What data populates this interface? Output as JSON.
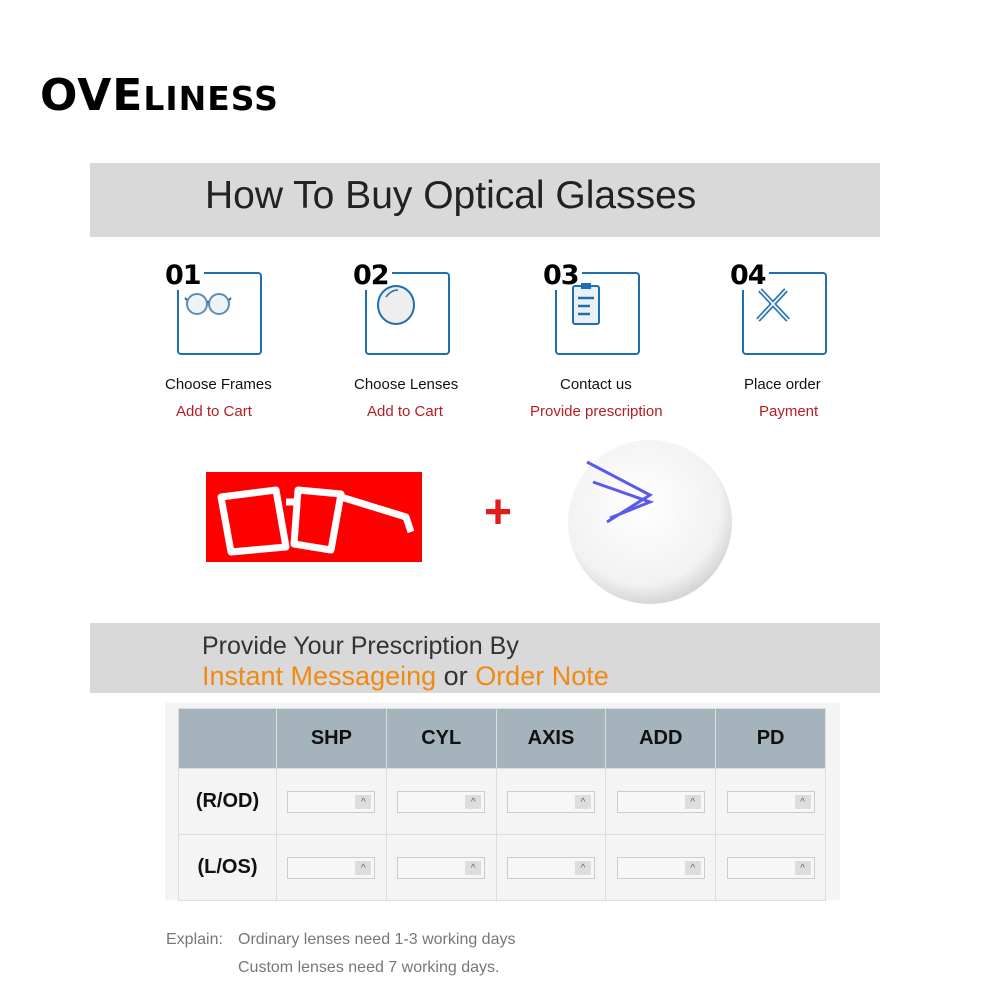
{
  "logo": {
    "big": "OVE",
    "small": "LINESS"
  },
  "title": "How To Buy Optical Glasses",
  "steps": [
    {
      "num": "01",
      "label": "Choose Frames",
      "action": "Add to Cart",
      "icon": "glasses-icon"
    },
    {
      "num": "02",
      "label": "Choose Lenses",
      "action": "Add to Cart",
      "icon": "lens-icon"
    },
    {
      "num": "03",
      "label": "Contact us",
      "action": "Provide prescription",
      "icon": "clipboard-icon"
    },
    {
      "num": "04",
      "label": "Place order",
      "action": "Payment",
      "icon": "tools-icon"
    }
  ],
  "plus": "+",
  "prescription": {
    "line1": "Provide Your Prescription By",
    "opt1": "Instant Messageing",
    "or": "or",
    "opt2": "Order Note"
  },
  "table": {
    "headers": [
      "",
      "SHP",
      "CYL",
      "AXIS",
      "ADD",
      "PD"
    ],
    "rows": [
      "(R/OD)",
      "(L/OS)"
    ],
    "spinner": "^"
  },
  "explain": {
    "label": "Explain:",
    "line1": "Ordinary lenses need 1-3 working days",
    "line2": "Custom lenses need 7 working days."
  },
  "colors": {
    "accent": "#1f6fb0",
    "red": "#b81c22",
    "orange": "#f08a14",
    "header": "#a5b3bd"
  }
}
